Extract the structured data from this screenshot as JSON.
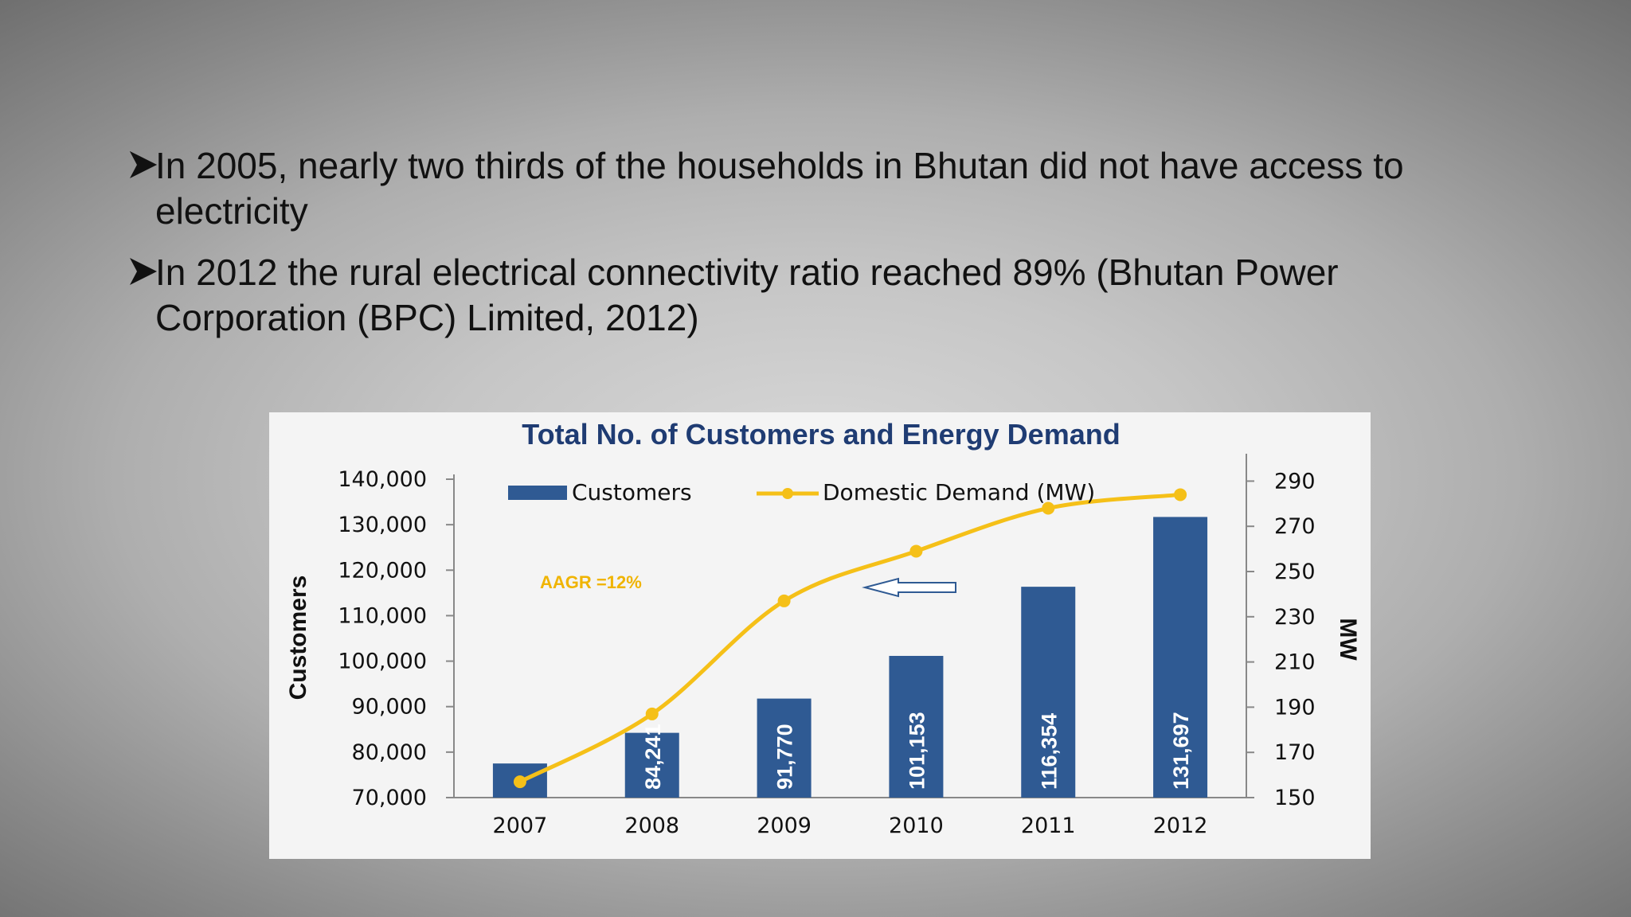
{
  "slide": {
    "bullets": [
      {
        "icon": "arrowhead-bullet-icon",
        "line1": " In 2005, nearly two thirds of the households in Bhutan did not have access to",
        "line2": "electricity"
      },
      {
        "icon": "arrowhead-bullet-icon",
        "line1": "In 2012 the rural electrical connectivity ratio reached 89% (Bhutan Power",
        "line2": "Corporation (BPC) Limited, 2012)"
      }
    ]
  },
  "chart_data": {
    "type": "bar",
    "title": "Total No. of Customers and Energy Demand",
    "categories": [
      "2007",
      "2008",
      "2009",
      "2010",
      "2011",
      "2012"
    ],
    "series": [
      {
        "name": "Customers",
        "type": "bar",
        "axis": "left",
        "values": [
          77500,
          84241,
          91770,
          101153,
          116354,
          131697
        ],
        "labels": [
          "",
          "84,241",
          "91,770",
          "101,153",
          "116,354",
          "131,697"
        ],
        "color": "#2f5a93"
      },
      {
        "name": "Domestic Demand (MW)",
        "type": "line",
        "axis": "right",
        "values": [
          157,
          187,
          237,
          259,
          278,
          284
        ],
        "color": "#f5c018"
      }
    ],
    "ylabel": "Customers",
    "ylim": [
      70000,
      140000
    ],
    "yticks": [
      "70,000",
      "80,000",
      "90,000",
      "100,000",
      "110,000",
      "120,000",
      "130,000",
      "140,000"
    ],
    "y2label": "MW",
    "y2lim": [
      150,
      300
    ],
    "y2ticks": [
      "150",
      "170",
      "190",
      "210",
      "230",
      "250",
      "270",
      "290"
    ],
    "annotation": "AAGR =12%",
    "legend": "top",
    "grid": false
  }
}
